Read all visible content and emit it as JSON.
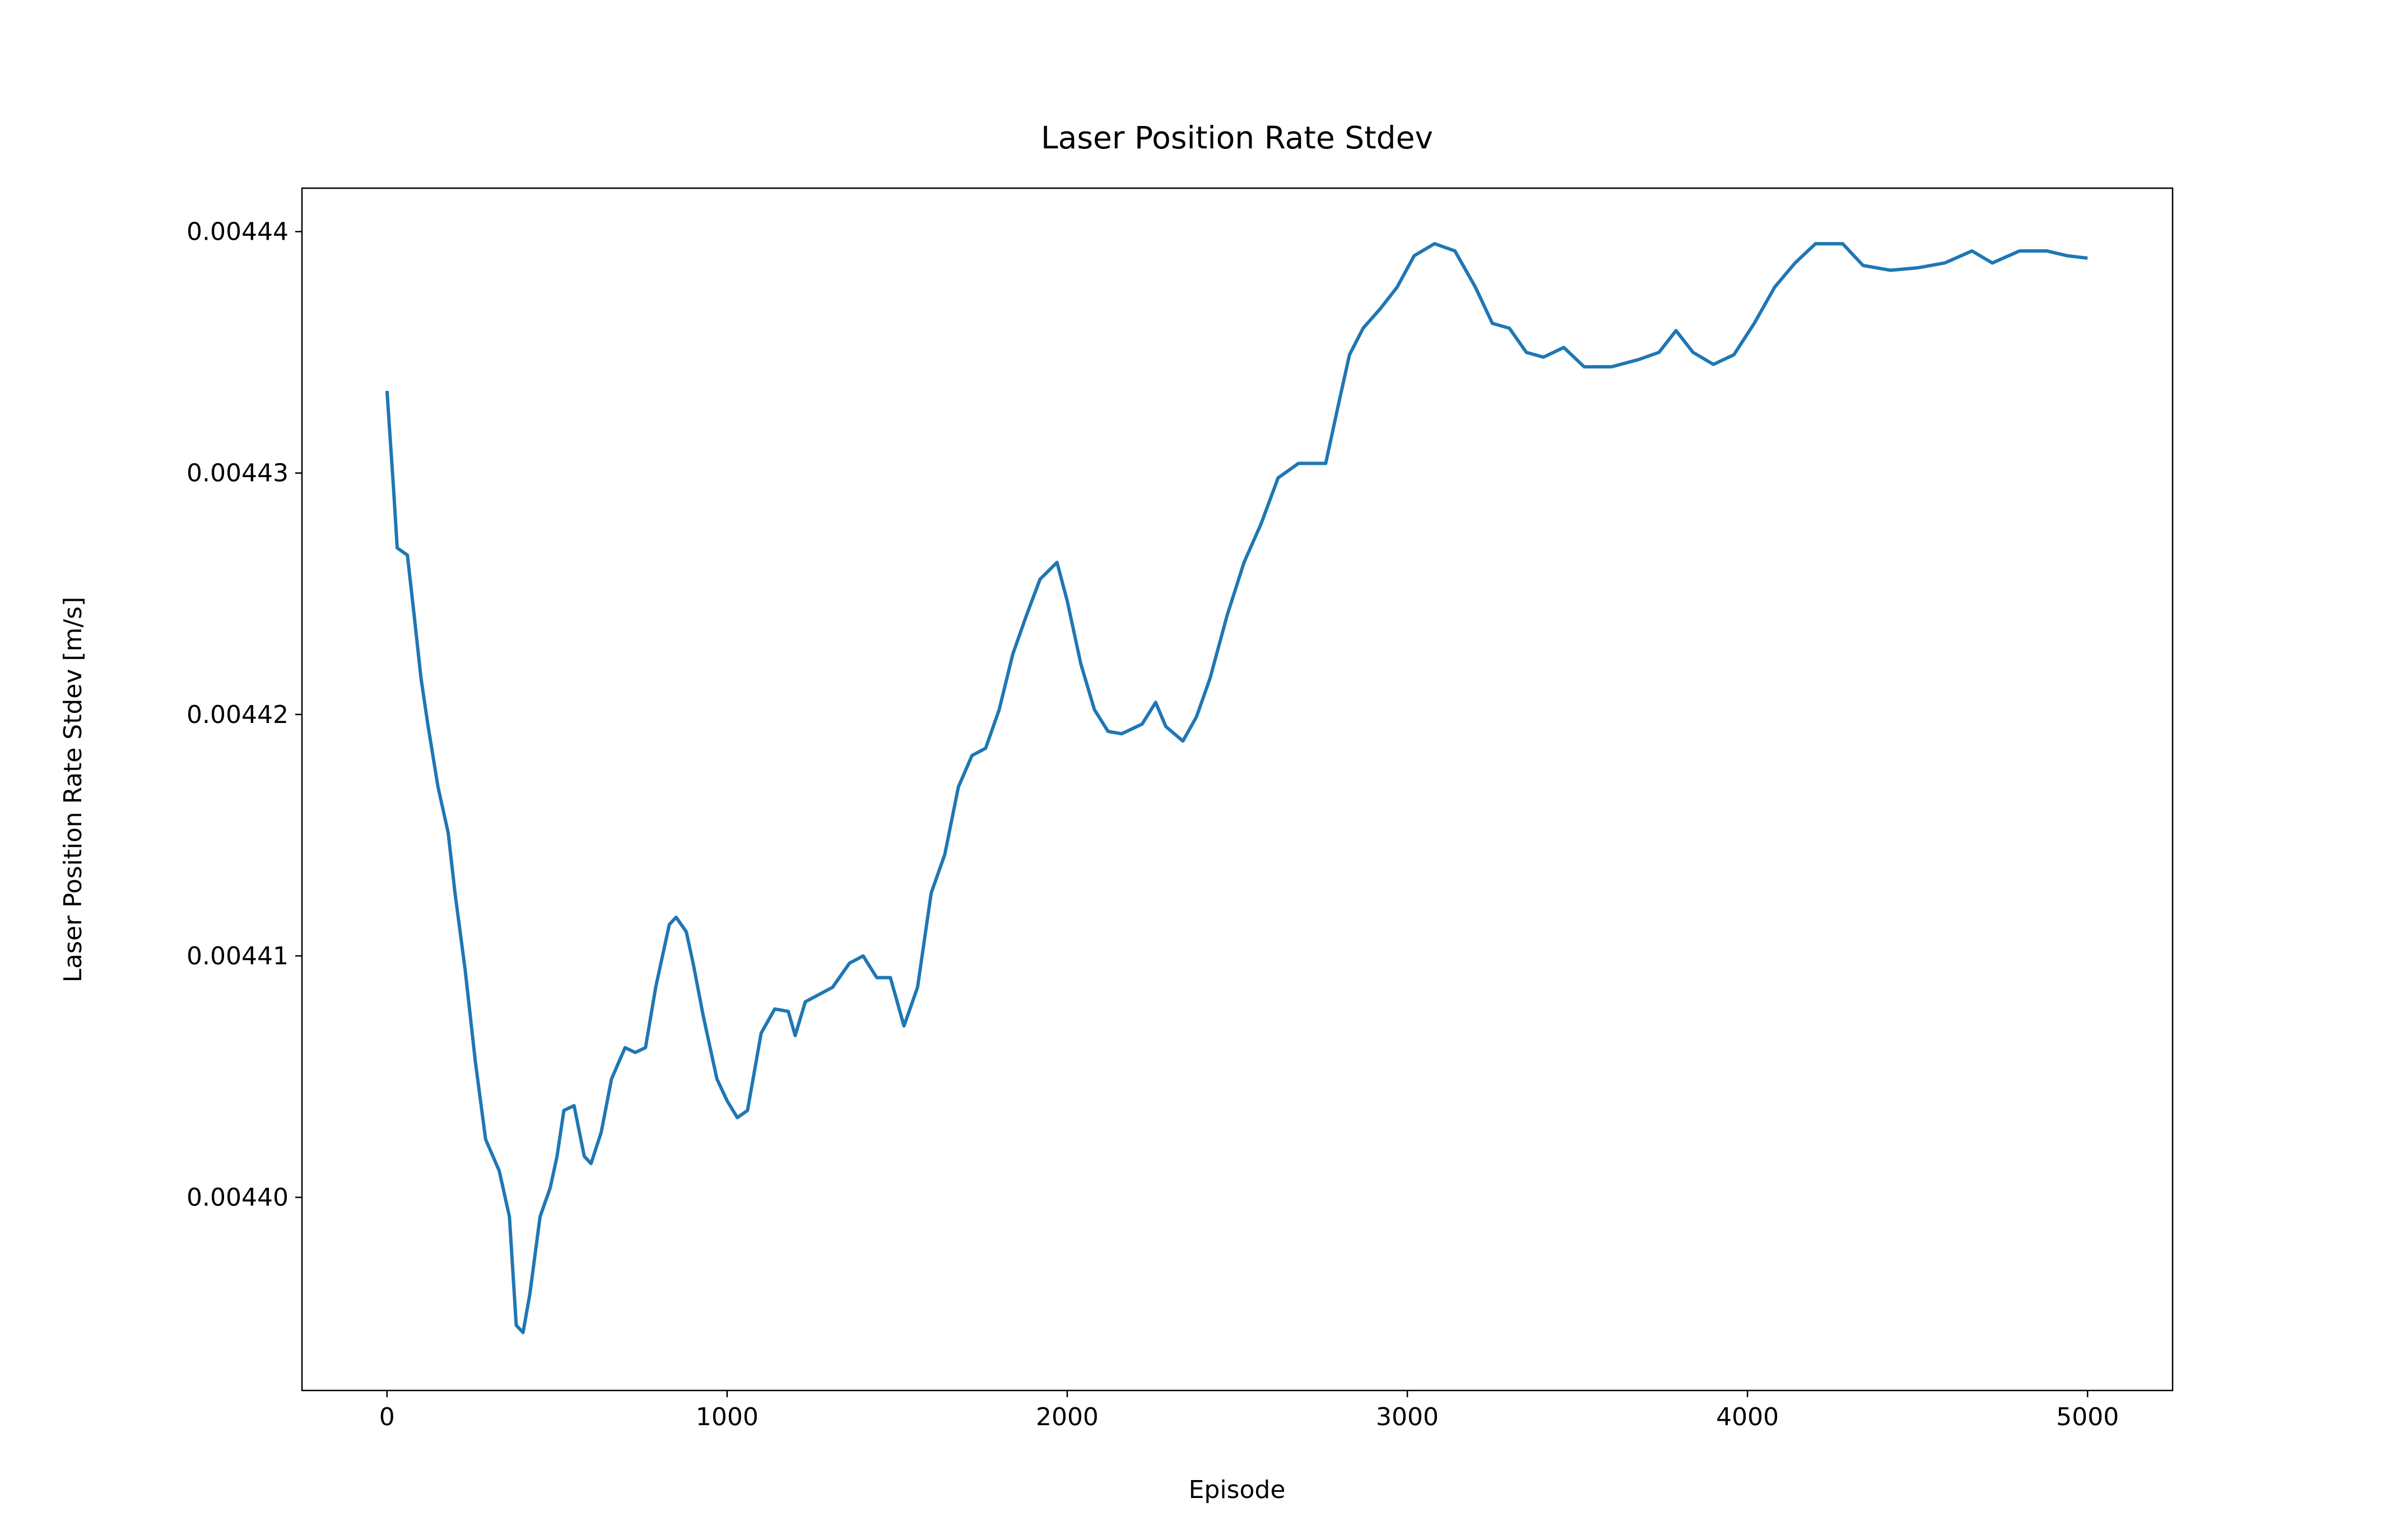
{
  "chart_data": {
    "type": "line",
    "title": "Laser Position Rate Stdev",
    "xlabel": "Episode",
    "ylabel": "Laser Position Rate Stdev [m/s]",
    "x": [
      0,
      20,
      30,
      60,
      80,
      100,
      120,
      150,
      180,
      200,
      230,
      260,
      290,
      330,
      360,
      380,
      400,
      420,
      450,
      480,
      500,
      520,
      550,
      580,
      600,
      630,
      660,
      700,
      730,
      760,
      790,
      830,
      850,
      880,
      900,
      930,
      970,
      1000,
      1030,
      1060,
      1100,
      1140,
      1180,
      1200,
      1230,
      1270,
      1310,
      1360,
      1400,
      1440,
      1480,
      1520,
      1560,
      1600,
      1640,
      1680,
      1720,
      1760,
      1800,
      1840,
      1880,
      1920,
      1970,
      2000,
      2040,
      2080,
      2120,
      2160,
      2220,
      2260,
      2290,
      2340,
      2380,
      2420,
      2470,
      2520,
      2570,
      2620,
      2680,
      2720,
      2760,
      2800,
      2830,
      2870,
      2920,
      2970,
      3020,
      3080,
      3140,
      3200,
      3250,
      3300,
      3350,
      3400,
      3460,
      3520,
      3600,
      3680,
      3740,
      3790,
      3840,
      3900,
      3960,
      4020,
      4080,
      4140,
      4200,
      4280,
      4340,
      4420,
      4500,
      4580,
      4660,
      4720,
      4800,
      4880,
      4940,
      5000
    ],
    "series": [
      {
        "name": "Laser Position Rate Stdev",
        "color": "#1f77b4",
        "values": [
          0.0044334,
          0.0044292,
          0.0044269,
          0.0044266,
          0.0044241,
          0.0044215,
          0.0044196,
          0.004417,
          0.0044151,
          0.0044126,
          0.0044094,
          0.0044056,
          0.0044024,
          0.0044011,
          0.0043992,
          0.0043947,
          0.0043944,
          0.004396,
          0.0043992,
          0.0044004,
          0.0044017,
          0.0044036,
          0.0044038,
          0.0044017,
          0.0044014,
          0.0044027,
          0.0044049,
          0.0044062,
          0.004406,
          0.0044062,
          0.0044087,
          0.0044113,
          0.0044116,
          0.004411,
          0.0044097,
          0.0044075,
          0.0044049,
          0.004404,
          0.0044033,
          0.0044036,
          0.0044068,
          0.0044078,
          0.0044077,
          0.0044067,
          0.0044081,
          0.0044084,
          0.0044087,
          0.0044097,
          0.00441,
          0.0044091,
          0.0044091,
          0.0044071,
          0.0044087,
          0.0044126,
          0.0044142,
          0.004417,
          0.0044183,
          0.0044186,
          0.0044202,
          0.0044225,
          0.0044241,
          0.0044256,
          0.0044263,
          0.0044247,
          0.0044221,
          0.0044202,
          0.0044193,
          0.0044192,
          0.0044196,
          0.0044205,
          0.0044195,
          0.0044189,
          0.0044199,
          0.0044215,
          0.0044241,
          0.0044263,
          0.0044279,
          0.0044298,
          0.0044304,
          0.0044304,
          0.0044304,
          0.004433,
          0.0044349,
          0.004436,
          0.0044368,
          0.0044377,
          0.004439,
          0.0044395,
          0.0044392,
          0.0044377,
          0.0044362,
          0.004436,
          0.004435,
          0.0044348,
          0.0044352,
          0.0044344,
          0.0044344,
          0.0044347,
          0.004435,
          0.0044359,
          0.004435,
          0.0044345,
          0.0044349,
          0.0044362,
          0.0044377,
          0.0044387,
          0.0044395,
          0.0044395,
          0.0044386,
          0.0044384,
          0.0044385,
          0.0044387,
          0.0044392,
          0.0044387,
          0.0044392,
          0.0044392,
          0.004439,
          0.0044389
        ]
      }
    ],
    "xlim": [
      -250,
      5250
    ],
    "xticks": [
      0,
      1000,
      2000,
      3000,
      4000,
      5000
    ],
    "ylim": [
      0.004392,
      0.0044418
    ],
    "yticks": [
      {
        "value": 0.0044,
        "label": "0.00440"
      },
      0.00441,
      0.00442,
      0.00443,
      0.00444
    ],
    "grid": false
  }
}
